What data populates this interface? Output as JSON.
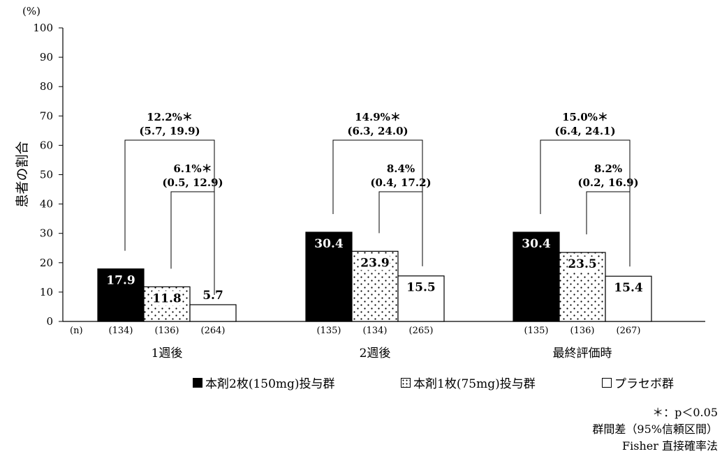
{
  "chart_data": {
    "type": "bar",
    "yunit": "(%)",
    "ylabel": "患者の割合",
    "ylim": [
      0,
      100
    ],
    "yticks": [
      0,
      10,
      20,
      30,
      40,
      50,
      60,
      70,
      80,
      90,
      100
    ],
    "n_label": "(n)",
    "categories": [
      "1週後",
      "2週後",
      "最終評価時"
    ],
    "series": [
      {
        "name": "本剤2枚(150mg)投与群",
        "fill": "black",
        "values": [
          17.9,
          30.4,
          30.4
        ],
        "n": [
          "(134)",
          "(135)",
          "(135)"
        ]
      },
      {
        "name": "本剤1枚(75mg)投与群",
        "fill": "dots",
        "values": [
          11.8,
          23.9,
          23.5
        ],
        "n": [
          "(136)",
          "(134)",
          "(136)"
        ]
      },
      {
        "name": "プラセボ群",
        "fill": "white",
        "values": [
          5.7,
          15.5,
          15.4
        ],
        "n": [
          "(264)",
          "(265)",
          "(267)"
        ]
      }
    ],
    "value_labels": [
      [
        "17.9",
        "30.4",
        "30.4"
      ],
      [
        "11.8",
        "23.9",
        "23.5"
      ],
      [
        "5.7",
        "15.5",
        "15.4"
      ]
    ],
    "comparisons": [
      {
        "category": "1週後",
        "pair": "150mg-placebo",
        "diff": "12.2%＊",
        "ci": "(5.7, 19.9)"
      },
      {
        "category": "1週後",
        "pair": "75mg-placebo",
        "diff": "6.1%＊",
        "ci": "(0.5, 12.9)"
      },
      {
        "category": "2週後",
        "pair": "150mg-placebo",
        "diff": "14.9%＊",
        "ci": "(6.3, 24.0)"
      },
      {
        "category": "2週後",
        "pair": "75mg-placebo",
        "diff": "8.4%",
        "ci": "(0.4, 17.2)"
      },
      {
        "category": "最終評価時",
        "pair": "150mg-placebo",
        "diff": "15.0%＊",
        "ci": "(6.4, 24.1)"
      },
      {
        "category": "最終評価時",
        "pair": "75mg-placebo",
        "diff": "8.2%",
        "ci": "(0.2, 16.9)"
      }
    ],
    "grid": false,
    "legend_position": "bottom-right"
  },
  "legend": {
    "item1": "本剤2枚(150mg)投与群",
    "item2": "本剤1枚(75mg)投与群",
    "item3": "プラセボ群"
  },
  "notes": {
    "significance": "＊：p＜0.05",
    "difference": "群間差（95%信頼区間）",
    "method": "Fisher 直接確率法"
  }
}
